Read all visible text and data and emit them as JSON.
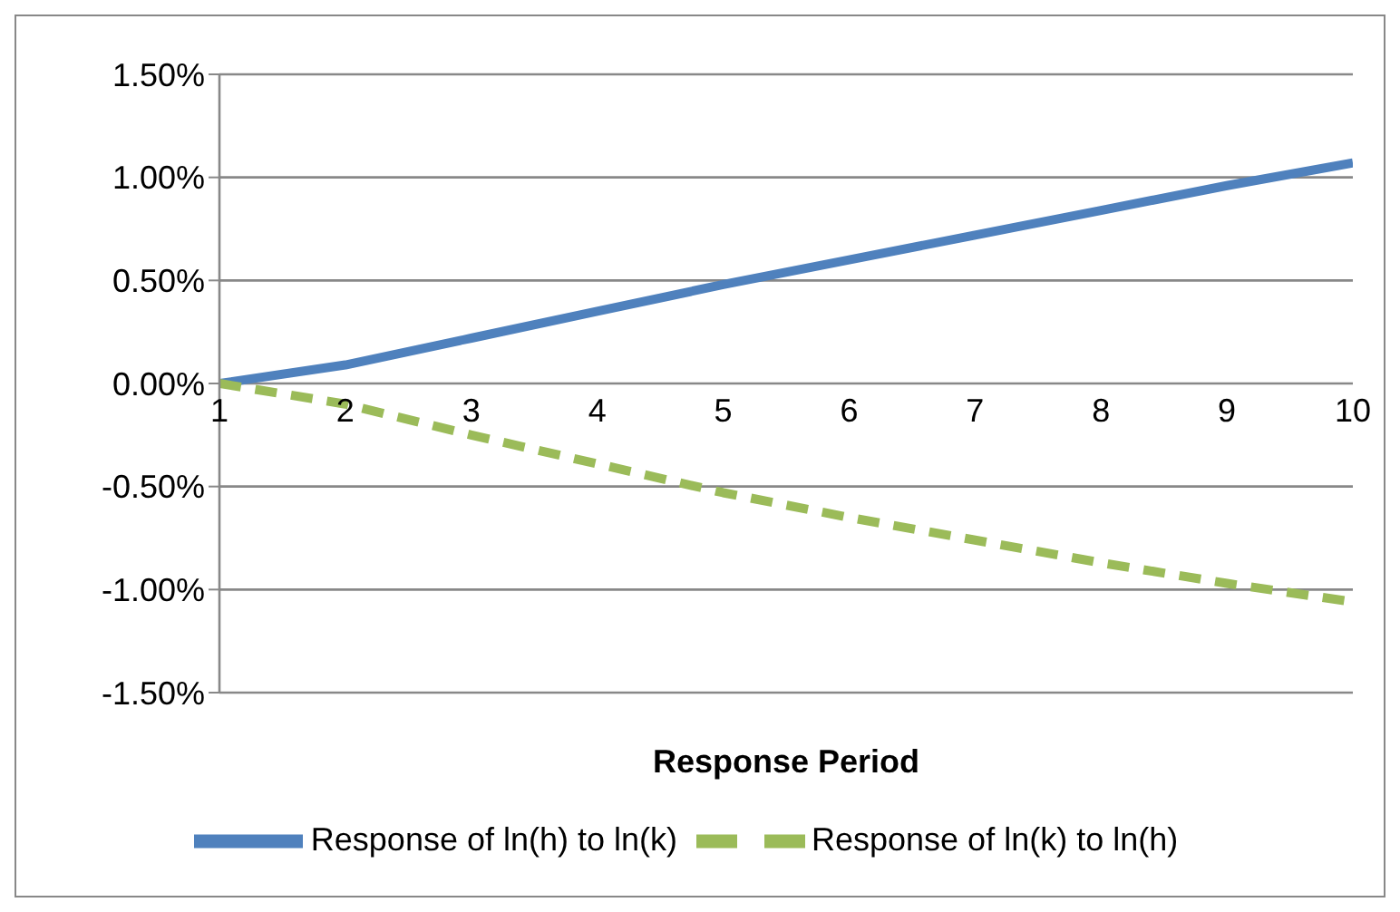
{
  "chart_data": {
    "type": "line",
    "xlabel": "Response Period",
    "x": [
      1,
      2,
      3,
      4,
      5,
      6,
      7,
      8,
      9,
      10
    ],
    "xlim": [
      1,
      10
    ],
    "xticks": [
      1,
      2,
      3,
      4,
      5,
      6,
      7,
      8,
      9,
      10
    ],
    "ylim": [
      -1.5,
      1.5
    ],
    "yticks": [
      {
        "value": -1.5,
        "label": "-1.50%"
      },
      {
        "value": -1,
        "label": "-1.00%"
      },
      {
        "value": -0.5,
        "label": "-0.50%"
      },
      {
        "value": 0,
        "label": "0.00%"
      },
      {
        "value": 0.5,
        "label": "0.50%"
      },
      {
        "value": 1,
        "label": "1.00%"
      },
      {
        "value": 1.5,
        "label": "1.50%"
      }
    ],
    "grid": "y",
    "legend": "bottom",
    "marker": "none",
    "series": [
      {
        "name": "Response of ln(h) to ln(k)",
        "color": "#4f81bd",
        "line_style": "solid",
        "values": [
          0,
          0.09,
          0.22,
          0.35,
          0.48,
          0.6,
          0.72,
          0.84,
          0.96,
          1.07
        ]
      },
      {
        "name": "Response of ln(k) to ln(h)",
        "color": "#9bbb59",
        "line_style": "dashed",
        "values": [
          0,
          -0.1,
          -0.25,
          -0.39,
          -0.53,
          -0.65,
          -0.76,
          -0.87,
          -0.97,
          -1.06
        ]
      }
    ]
  }
}
